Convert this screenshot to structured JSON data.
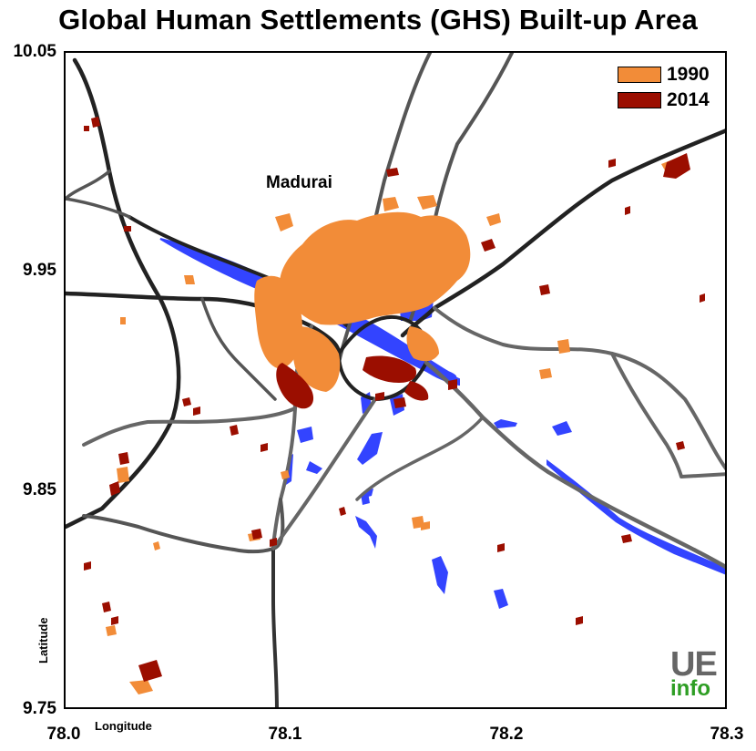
{
  "title": "Global Human Settlements (GHS) Built-up Area",
  "y_axis": {
    "label": "Latitude",
    "ticks": [
      "10.05",
      "9.95",
      "9.85",
      "9.75"
    ]
  },
  "x_axis": {
    "label": "Longitude",
    "ticks": [
      "78.0",
      "78.1",
      "78.2",
      "78.3"
    ]
  },
  "legend": [
    {
      "label": "1990",
      "color": "#f28c38"
    },
    {
      "label": "2014",
      "color": "#9b0e00"
    }
  ],
  "city_label": "Madurai",
  "logo": {
    "line1": "UE",
    "line2": "info"
  },
  "colors": {
    "water": "#3344ff",
    "road_major": "#222222",
    "road_minor": "#666666"
  }
}
